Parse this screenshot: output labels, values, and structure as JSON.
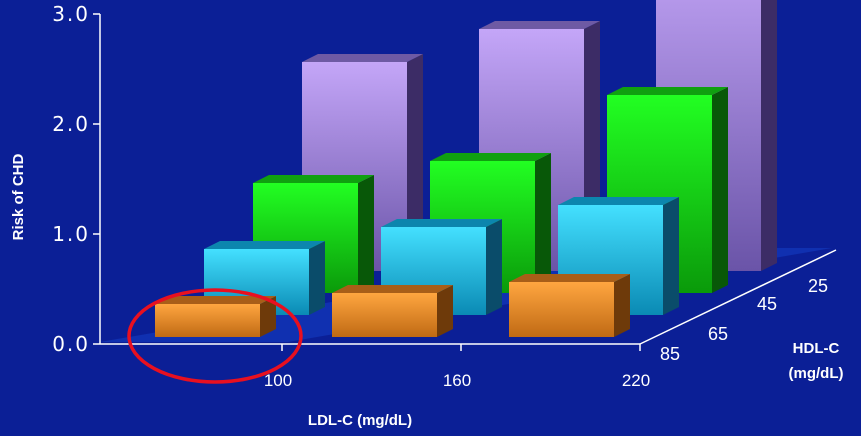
{
  "chart_data": {
    "type": "bar",
    "subtype": "3d-grouped",
    "title": "",
    "ylabel": "Risk of CHD",
    "xlabel": "LDL-C (mg/dL)",
    "zlabel_line1": "HDL-C",
    "zlabel_line2": "(mg/dL)",
    "ylim": [
      0,
      3.0
    ],
    "y_ticks": [
      "0.0",
      "1.0",
      "2.0",
      "3.0"
    ],
    "x_categories": [
      "100",
      "160",
      "220"
    ],
    "series": [
      {
        "name": "85",
        "color": "#f59a2e",
        "values": [
          0.3,
          0.4,
          0.5
        ]
      },
      {
        "name": "65",
        "color": "#22ccf2",
        "values": [
          0.6,
          0.8,
          1.0
        ]
      },
      {
        "name": "45",
        "color": "#1ef01e",
        "values": [
          1.0,
          1.2,
          1.8
        ]
      },
      {
        "name": "25",
        "color": "#b08cea",
        "values": [
          1.9,
          2.2,
          3.0
        ]
      }
    ],
    "floor_color": "#1030b0",
    "highlight_color": "#e81020"
  }
}
